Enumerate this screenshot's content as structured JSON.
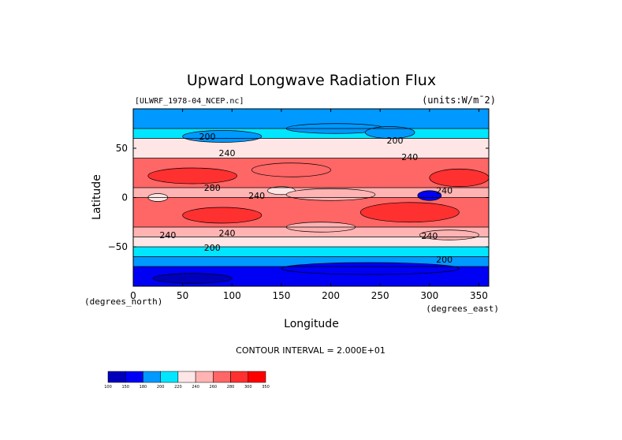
{
  "chart_data": {
    "type": "heatmap",
    "title": "Upward Longwave Radiation Flux",
    "source_label": "[ULWRF_1978-04_NCEP.nc]",
    "units_label": "(units:W/m¯2)",
    "xlabel": "Longitude",
    "ylabel": "Latitude",
    "x_unit_label": "(degrees_east)",
    "y_unit_label": "(degrees_north)",
    "xlim": [
      0,
      360
    ],
    "ylim": [
      -90,
      90
    ],
    "x_ticks": [
      0,
      50,
      100,
      150,
      200,
      250,
      300,
      350
    ],
    "y_ticks": [
      50,
      0,
      -50
    ],
    "contour_interval_label": "CONTOUR INTERVAL = 2.000E+01",
    "colorbar": {
      "levels": [
        100,
        150,
        180,
        200,
        220,
        240,
        260,
        280,
        300,
        350
      ],
      "tick_labels": [
        "100",
        "150",
        "180",
        "200",
        "220",
        "240",
        "260",
        "280",
        "300",
        "350"
      ],
      "colors": [
        "#0000bb",
        "#0000f5",
        "#0099ff",
        "#00e6ff",
        "#ffe6e6",
        "#ffb3b3",
        "#ff6666",
        "#ff3030",
        "#ff0000"
      ]
    },
    "contour_labels": [
      {
        "lon": 75,
        "lat": 59,
        "text": "200"
      },
      {
        "lon": 265,
        "lat": 55,
        "text": "200"
      },
      {
        "lon": 95,
        "lat": 42,
        "text": "240"
      },
      {
        "lon": 280,
        "lat": 38,
        "text": "240"
      },
      {
        "lon": 80,
        "lat": 7,
        "text": "280"
      },
      {
        "lon": 125,
        "lat": -1,
        "text": "240"
      },
      {
        "lon": 315,
        "lat": 4,
        "text": "240"
      },
      {
        "lon": 35,
        "lat": -41,
        "text": "240"
      },
      {
        "lon": 95,
        "lat": -39,
        "text": "240"
      },
      {
        "lon": 300,
        "lat": -42,
        "text": "240"
      },
      {
        "lon": 80,
        "lat": -54,
        "text": "200"
      },
      {
        "lon": 315,
        "lat": -66,
        "text": "200"
      }
    ],
    "approx_zonal_field": [
      {
        "lat": 85,
        "value": 185
      },
      {
        "lat": 75,
        "value": 195
      },
      {
        "lat": 65,
        "value": 210
      },
      {
        "lat": 55,
        "value": 225
      },
      {
        "lat": 45,
        "value": 235
      },
      {
        "lat": 35,
        "value": 260
      },
      {
        "lat": 25,
        "value": 275
      },
      {
        "lat": 15,
        "value": 260
      },
      {
        "lat": 5,
        "value": 245
      },
      {
        "lat": -5,
        "value": 260
      },
      {
        "lat": -15,
        "value": 275
      },
      {
        "lat": -25,
        "value": 270
      },
      {
        "lat": -35,
        "value": 250
      },
      {
        "lat": -45,
        "value": 230
      },
      {
        "lat": -55,
        "value": 210
      },
      {
        "lat": -65,
        "value": 190
      },
      {
        "lat": -75,
        "value": 170
      },
      {
        "lat": -85,
        "value": 150
      }
    ]
  }
}
